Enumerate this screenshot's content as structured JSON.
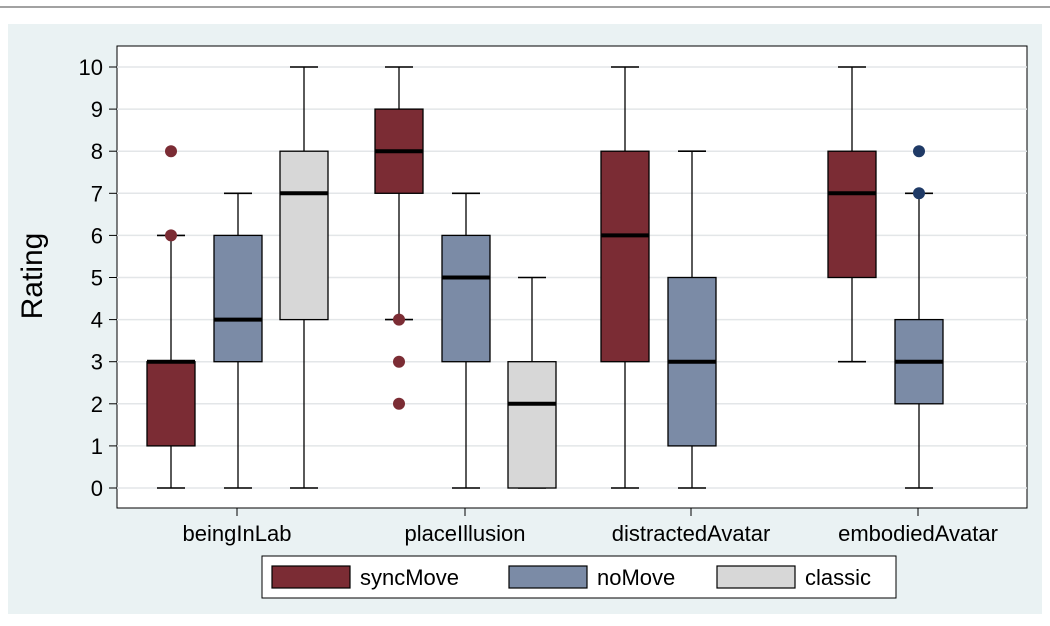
{
  "chart_data": {
    "type": "box",
    "title": "",
    "xlabel": "",
    "ylabel": "Rating",
    "ylim": [
      0,
      10
    ],
    "yticks": [
      0,
      1,
      2,
      3,
      4,
      5,
      6,
      7,
      8,
      9,
      10
    ],
    "grid": true,
    "legend_position": "bottom",
    "categories": [
      "beingInLab",
      "placeIllusion",
      "distractedAvatar",
      "embodiedAvatar"
    ],
    "series": [
      {
        "name": "syncMove",
        "color": "#7b2c34",
        "boxes": [
          {
            "category": "beingInLab",
            "whisker_low": 0,
            "q1": 1,
            "median": 3,
            "q3": 3,
            "whisker_high": 6,
            "outliers": [
              6,
              8
            ]
          },
          {
            "category": "placeIllusion",
            "whisker_low": 4,
            "q1": 7,
            "median": 8,
            "q3": 9,
            "whisker_high": 10,
            "outliers": [
              2,
              3,
              4
            ]
          },
          {
            "category": "distractedAvatar",
            "whisker_low": 0,
            "q1": 3,
            "median": 6,
            "q3": 8,
            "whisker_high": 10,
            "outliers": []
          },
          {
            "category": "embodiedAvatar",
            "whisker_low": 3,
            "q1": 5,
            "median": 7,
            "q3": 8,
            "whisker_high": 10,
            "outliers": []
          }
        ]
      },
      {
        "name": "noMove",
        "color": "#7b8ba6",
        "boxes": [
          {
            "category": "beingInLab",
            "whisker_low": 0,
            "q1": 3,
            "median": 4,
            "q3": 6,
            "whisker_high": 7,
            "outliers": []
          },
          {
            "category": "placeIllusion",
            "whisker_low": 0,
            "q1": 3,
            "median": 5,
            "q3": 6,
            "whisker_high": 7,
            "outliers": []
          },
          {
            "category": "distractedAvatar",
            "whisker_low": 0,
            "q1": 1,
            "median": 3,
            "q3": 5,
            "whisker_high": 8,
            "outliers": []
          },
          {
            "category": "embodiedAvatar",
            "whisker_low": 0,
            "q1": 2,
            "median": 3,
            "q3": 4,
            "whisker_high": 7,
            "outliers": [
              7,
              8
            ]
          }
        ]
      },
      {
        "name": "classic",
        "color": "#d7d7d7",
        "boxes": [
          {
            "category": "beingInLab",
            "whisker_low": 0,
            "q1": 4,
            "median": 7,
            "q3": 8,
            "whisker_high": 10,
            "outliers": []
          },
          {
            "category": "placeIllusion",
            "whisker_low": 0,
            "q1": 0,
            "median": 2,
            "q3": 3,
            "whisker_high": 5,
            "outliers": []
          },
          {
            "category": "distractedAvatar",
            "whisker_low": null,
            "q1": null,
            "median": null,
            "q3": null,
            "whisker_high": null,
            "outliers": []
          },
          {
            "category": "embodiedAvatar",
            "whisker_low": null,
            "q1": null,
            "median": null,
            "q3": null,
            "whisker_high": null,
            "outliers": []
          }
        ]
      }
    ]
  },
  "colors": {
    "panel_background": "#eaf2f3",
    "plot_background": "#ffffff",
    "grid": "#e3e6e8",
    "outlier_syncMove": "#7b2c34",
    "outlier_noMove": "#1f3a66"
  }
}
